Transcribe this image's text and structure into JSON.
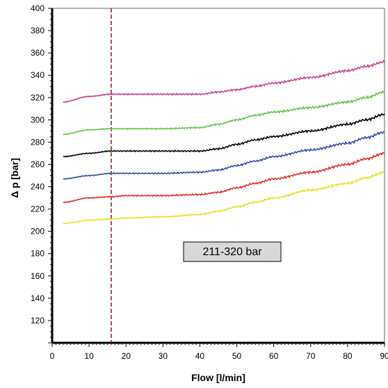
{
  "chart_data": {
    "type": "line",
    "xlabel": "Flow [l/min]",
    "ylabel": "Δ p [bar]",
    "xlim": [
      0,
      90
    ],
    "ylim": [
      100,
      400
    ],
    "x_ticks": [
      "0",
      "10",
      "20",
      "30",
      "40",
      "50",
      "60",
      "70",
      "80",
      "90"
    ],
    "y_ticks": [
      "120",
      "140",
      "160",
      "180",
      "200",
      "220",
      "240",
      "260",
      "280",
      "300",
      "320",
      "340",
      "360",
      "380",
      "400"
    ],
    "grid": false,
    "annotation": "211-320 bar",
    "vline_x": 16,
    "vline_color": "#8b1a1a",
    "x": [
      3,
      10,
      16,
      20,
      30,
      40,
      45,
      50,
      55,
      60,
      70,
      80,
      85,
      90
    ],
    "series": [
      {
        "color": "#c8408c",
        "values": [
          316,
          321,
          323,
          323,
          323,
          323,
          325,
          327,
          330,
          333,
          338,
          344,
          348,
          352
        ]
      },
      {
        "color": "#66c24a",
        "values": [
          287,
          291,
          292,
          292,
          292,
          293,
          296,
          300,
          304,
          307,
          311,
          316,
          320,
          325
        ]
      },
      {
        "color": "#000000",
        "values": [
          267,
          270,
          272,
          272,
          272,
          272,
          274,
          278,
          282,
          285,
          290,
          296,
          300,
          305
        ]
      },
      {
        "color": "#2e4fa8",
        "values": [
          247,
          250,
          252,
          252,
          252,
          253,
          255,
          259,
          263,
          267,
          273,
          279,
          284,
          289
        ]
      },
      {
        "color": "#e52b2b",
        "values": [
          226,
          230,
          231,
          232,
          232,
          233,
          235,
          239,
          243,
          247,
          253,
          260,
          265,
          270
        ]
      },
      {
        "color": "#e8e02c",
        "values": [
          207,
          210,
          211,
          212,
          213,
          215,
          218,
          222,
          226,
          230,
          237,
          243,
          248,
          253
        ]
      }
    ]
  }
}
